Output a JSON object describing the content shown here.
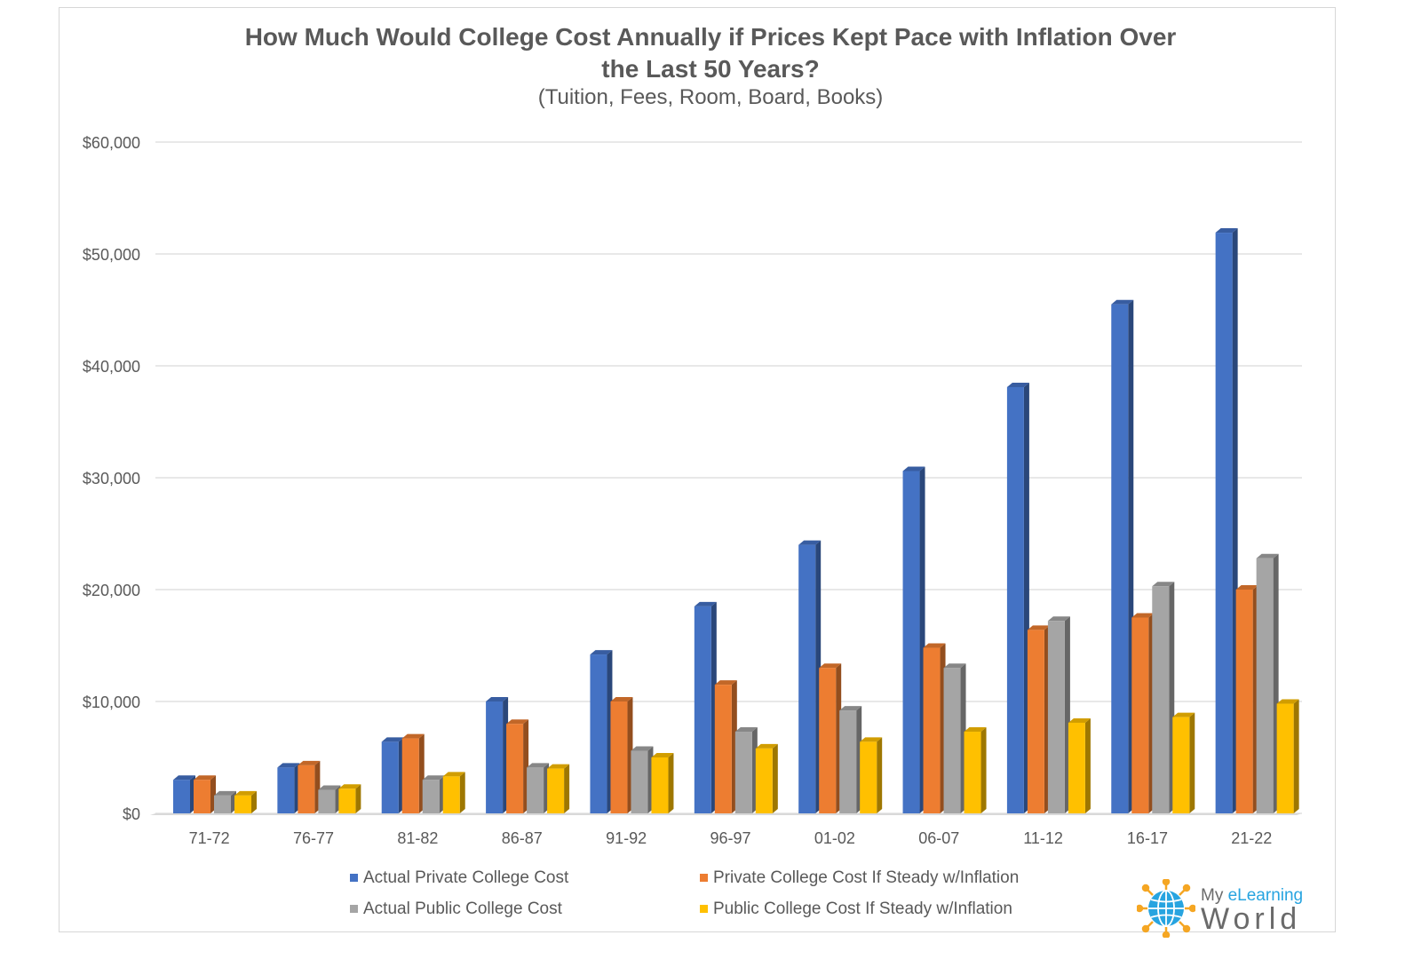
{
  "chart_data": {
    "type": "bar",
    "title_line1": "How Much Would College Cost Annually if Prices Kept Pace with Inflation Over",
    "title_line2": "the Last 50 Years?",
    "subtitle": "(Tuition, Fees, Room, Board, Books)",
    "ylim": [
      0,
      60000
    ],
    "yticks": [
      0,
      10000,
      20000,
      30000,
      40000,
      50000,
      60000
    ],
    "ytick_labels": [
      "$0",
      "$10,000",
      "$20,000",
      "$30,000",
      "$40,000",
      "$50,000",
      "$60,000"
    ],
    "categories": [
      "71-72",
      "76-77",
      "81-82",
      "86-87",
      "91-92",
      "96-97",
      "01-02",
      "06-07",
      "11-12",
      "16-17",
      "21-22"
    ],
    "series": [
      {
        "name": "Actual Private College Cost",
        "color": "#4472c4",
        "values": [
          3000,
          4100,
          6400,
          10000,
          14200,
          18500,
          24000,
          30600,
          38100,
          45500,
          51900
        ]
      },
      {
        "name": "Private College Cost If Steady w/Inflation",
        "color": "#ed7d31",
        "values": [
          3000,
          4300,
          6700,
          8000,
          10000,
          11500,
          13000,
          14800,
          16400,
          17500,
          20000
        ]
      },
      {
        "name": "Actual Public College Cost",
        "color": "#a5a5a5",
        "values": [
          1600,
          2100,
          3000,
          4100,
          5600,
          7300,
          9200,
          13000,
          17200,
          20300,
          22800
        ]
      },
      {
        "name": "Public College Cost If Steady w/Inflation",
        "color": "#ffc000",
        "values": [
          1600,
          2200,
          3300,
          4000,
          5000,
          5800,
          6400,
          7300,
          8100,
          8600,
          9800
        ]
      }
    ],
    "grid": true,
    "legend_position": "bottom"
  },
  "logo": {
    "line1_prefix": "My ",
    "line1_accent": "eLearning",
    "line2": "World",
    "accent_color": "#27a4e0",
    "icon": "globe-icon"
  }
}
